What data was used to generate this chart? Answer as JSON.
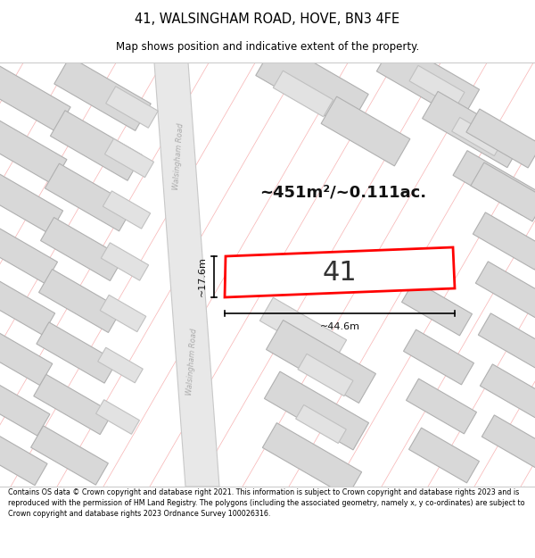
{
  "title": "41, WALSINGHAM ROAD, HOVE, BN3 4FE",
  "subtitle": "Map shows position and indicative extent of the property.",
  "footer": "Contains OS data © Crown copyright and database right 2021. This information is subject to Crown copyright and database rights 2023 and is reproduced with the permission of HM Land Registry. The polygons (including the associated geometry, namely x, y co-ordinates) are subject to Crown copyright and database rights 2023 Ordnance Survey 100026316.",
  "area_label": "~451m²/~0.111ac.",
  "width_label": "~44.6m",
  "height_label": "~17.6m",
  "property_number": "41",
  "map_bg": "#ffffff",
  "grid_line_color": "#f5a0a0",
  "road_fill": "#e8e8e8",
  "road_edge": "#c8c8c8",
  "building_fill": "#d8d8d8",
  "building_edge": "#b0b0b0",
  "inner_building_fill": "#e2e2e2",
  "inner_building_edge": "#c0c0c0",
  "property_fill": "#ffffff",
  "property_edge": "#ff0000",
  "annotation_color": "#111111",
  "road_label_color": "#aaaaaa"
}
